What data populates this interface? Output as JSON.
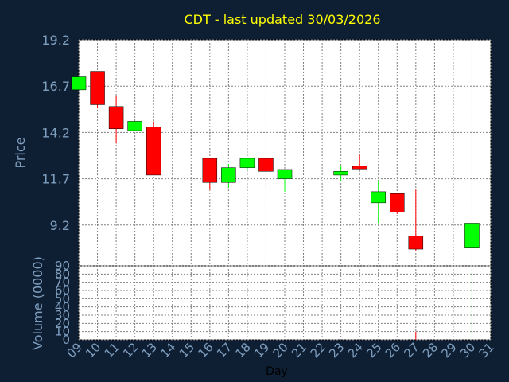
{
  "title": "CDT - last updated 30/03/2026",
  "colors": {
    "background": "#0e1e33",
    "plot_background": "#ffffff",
    "grid": "#808080",
    "axis_text": "#7f9fbf",
    "title": "#ffff00",
    "up": "#00ff00",
    "down": "#ff0000"
  },
  "chart_data": [
    {
      "type": "candlestick",
      "ylabel": "Price",
      "ylim": [
        7.0,
        19.2
      ],
      "yticks": [
        "9.2",
        "11.7",
        "14.2",
        "16.7",
        "19.2"
      ],
      "grid": true,
      "candles": [
        {
          "day": 9,
          "open": 16.5,
          "high": 17.2,
          "low": 16.5,
          "close": 17.2
        },
        {
          "day": 10,
          "open": 17.5,
          "high": 17.5,
          "low": 15.5,
          "close": 15.7
        },
        {
          "day": 11,
          "open": 15.6,
          "high": 16.2,
          "low": 13.6,
          "close": 14.4
        },
        {
          "day": 12,
          "open": 14.3,
          "high": 14.8,
          "low": 14.3,
          "close": 14.8
        },
        {
          "day": 13,
          "open": 14.5,
          "high": 14.8,
          "low": 11.9,
          "close": 11.9
        },
        {
          "day": 16,
          "open": 12.8,
          "high": 12.8,
          "low": 11.1,
          "close": 11.5
        },
        {
          "day": 17,
          "open": 11.5,
          "high": 12.5,
          "low": 11.2,
          "close": 12.3
        },
        {
          "day": 18,
          "open": 12.3,
          "high": 12.8,
          "low": 12.2,
          "close": 12.8
        },
        {
          "day": 19,
          "open": 12.8,
          "high": 12.8,
          "low": 11.3,
          "close": 12.1
        },
        {
          "day": 20,
          "open": 11.7,
          "high": 12.2,
          "low": 11.0,
          "close": 12.2
        },
        {
          "day": 23,
          "open": 11.9,
          "high": 12.4,
          "low": 11.6,
          "close": 12.1
        },
        {
          "day": 24,
          "open": 12.4,
          "high": 13.0,
          "low": 12.2,
          "close": 12.3
        },
        {
          "day": 25,
          "open": 10.4,
          "high": 11.6,
          "low": 9.3,
          "close": 11.0
        },
        {
          "day": 26,
          "open": 10.9,
          "high": 10.9,
          "low": 9.8,
          "close": 9.9
        },
        {
          "day": 27,
          "open": 8.6,
          "high": 11.1,
          "low": 7.8,
          "close": 7.9
        },
        {
          "day": 30,
          "open": 8.0,
          "high": 9.3,
          "low": 8.0,
          "close": 9.3
        }
      ]
    },
    {
      "type": "bar",
      "ylabel": "Volume (0000)",
      "ylim": [
        0,
        90
      ],
      "yticks": [
        "0",
        "10",
        "20",
        "30",
        "40",
        "50",
        "60",
        "70",
        "80",
        "90"
      ],
      "grid": true,
      "bars": [
        {
          "day": 9,
          "value": 0
        },
        {
          "day": 10,
          "value": 0
        },
        {
          "day": 11,
          "value": 0
        },
        {
          "day": 12,
          "value": 0
        },
        {
          "day": 13,
          "value": 0
        },
        {
          "day": 16,
          "value": 0
        },
        {
          "day": 17,
          "value": 0
        },
        {
          "day": 18,
          "value": 0
        },
        {
          "day": 19,
          "value": 0
        },
        {
          "day": 20,
          "value": 0
        },
        {
          "day": 23,
          "value": 0
        },
        {
          "day": 24,
          "value": 0
        },
        {
          "day": 25,
          "value": 0
        },
        {
          "day": 26,
          "value": 0
        },
        {
          "day": 27,
          "value": 10
        },
        {
          "day": 30,
          "value": 88
        }
      ]
    }
  ],
  "xaxis": {
    "xlabel": "Day",
    "xlim": [
      9,
      31
    ],
    "xticks": [
      "09",
      "10",
      "11",
      "12",
      "13",
      "14",
      "15",
      "16",
      "17",
      "18",
      "19",
      "20",
      "21",
      "22",
      "23",
      "24",
      "25",
      "26",
      "27",
      "28",
      "29",
      "30",
      "31"
    ]
  }
}
